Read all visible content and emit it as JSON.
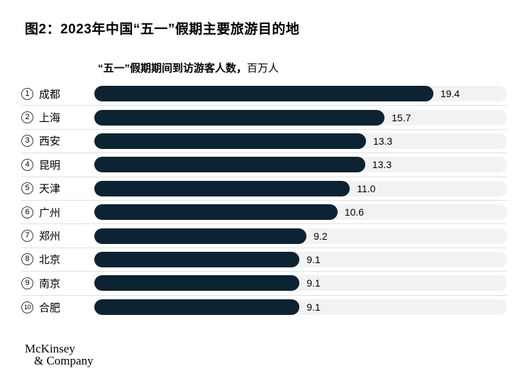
{
  "figure": {
    "title": "图2：2023年中国“五一”假期主要旅游目的地",
    "subtitle_main": "“五一”假期期间到访游客人数，",
    "subtitle_unit": "百万人"
  },
  "chart_data": {
    "type": "bar",
    "orientation": "horizontal",
    "title": "图2：2023年中国“五一”假期主要旅游目的地",
    "axis_label": "“五一”假期期间到访游客人数，百万人",
    "unit": "百万人",
    "categories": [
      "成都",
      "上海",
      "西安",
      "昆明",
      "天津",
      "广州",
      "郑州",
      "北京",
      "南京",
      "合肥"
    ],
    "values": [
      19.4,
      15.7,
      13.3,
      13.3,
      11.0,
      10.6,
      9.2,
      9.1,
      9.1,
      9.1
    ],
    "ranks": [
      1,
      2,
      3,
      4,
      5,
      6,
      7,
      8,
      9,
      10
    ],
    "bar_color": "#0b2332",
    "track_color": "#f2f2f2",
    "divider_color": "#e0e0e0",
    "grid": false,
    "legend": "none",
    "value_labels_shown": true,
    "items": [
      {
        "rank": "1",
        "city": "成都",
        "value": 19.4,
        "value_label": "19.4",
        "bar_pct": 82.1
      },
      {
        "rank": "2",
        "city": "上海",
        "value": 15.7,
        "value_label": "15.7",
        "bar_pct": 70.3
      },
      {
        "rank": "3",
        "city": "西安",
        "value": 13.3,
        "value_label": "13.3",
        "bar_pct": 65.8
      },
      {
        "rank": "4",
        "city": "昆明",
        "value": 13.3,
        "value_label": "13.3",
        "bar_pct": 65.6
      },
      {
        "rank": "5",
        "city": "天津",
        "value": 11.0,
        "value_label": "11.0",
        "bar_pct": 61.9
      },
      {
        "rank": "6",
        "city": "广州",
        "value": 10.6,
        "value_label": "10.6",
        "bar_pct": 58.9
      },
      {
        "rank": "7",
        "city": "郑州",
        "value": 9.2,
        "value_label": "9.2",
        "bar_pct": 51.4
      },
      {
        "rank": "8",
        "city": "北京",
        "value": 9.1,
        "value_label": "9.1",
        "bar_pct": 49.7
      },
      {
        "rank": "9",
        "city": "南京",
        "value": 9.1,
        "value_label": "9.1",
        "bar_pct": 49.7
      },
      {
        "rank": "10",
        "city": "合肥",
        "value": 9.1,
        "value_label": "9.1",
        "bar_pct": 49.7
      }
    ]
  },
  "footer": {
    "logo_line1": "McKinsey",
    "logo_line2": "& Company"
  }
}
